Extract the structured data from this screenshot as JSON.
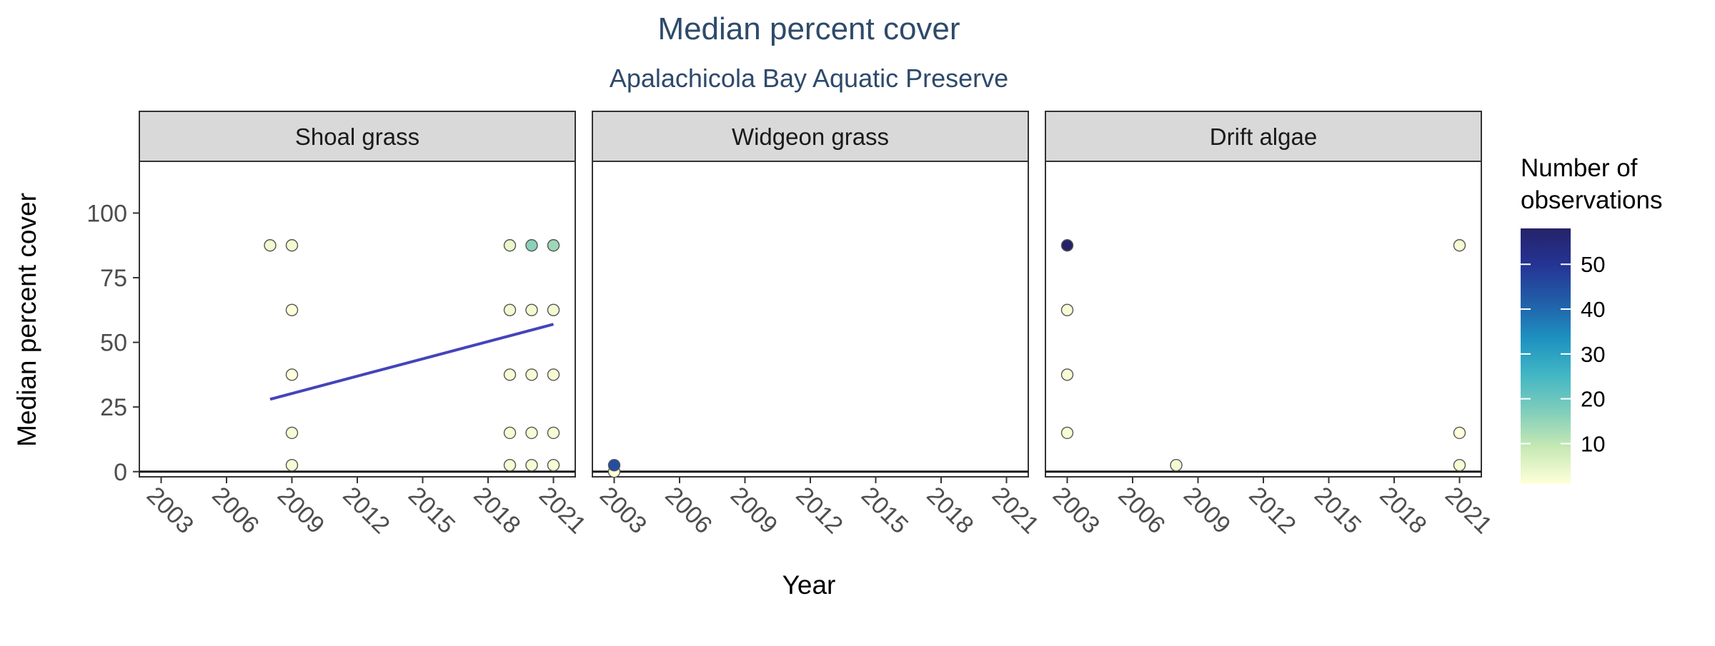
{
  "chart_data": {
    "type": "scatter",
    "title": "Median percent cover",
    "subtitle": "Apalachicola Bay Aquatic Preserve",
    "xlabel": "Year",
    "ylabel": "Median percent cover",
    "xlim": [
      2002,
      2022
    ],
    "ylim": [
      -2,
      120
    ],
    "x_ticks": [
      2003,
      2006,
      2009,
      2012,
      2015,
      2018,
      2021
    ],
    "y_ticks": [
      0,
      25,
      50,
      75,
      100
    ],
    "grid": false,
    "facets": [
      {
        "label": "Shoal grass",
        "points": [
          {
            "year": 2008,
            "cover": 87.5,
            "n": 3
          },
          {
            "year": 2009,
            "cover": 87.5,
            "n": 3
          },
          {
            "year": 2009,
            "cover": 62.5,
            "n": 1
          },
          {
            "year": 2009,
            "cover": 37.5,
            "n": 1
          },
          {
            "year": 2009,
            "cover": 15,
            "n": 2
          },
          {
            "year": 2009,
            "cover": 2.5,
            "n": 2
          },
          {
            "year": 2019,
            "cover": 87.5,
            "n": 4
          },
          {
            "year": 2020,
            "cover": 87.5,
            "n": 16
          },
          {
            "year": 2021,
            "cover": 87.5,
            "n": 14
          },
          {
            "year": 2019,
            "cover": 62.5,
            "n": 3
          },
          {
            "year": 2020,
            "cover": 62.5,
            "n": 3
          },
          {
            "year": 2021,
            "cover": 62.5,
            "n": 3
          },
          {
            "year": 2019,
            "cover": 37.5,
            "n": 2
          },
          {
            "year": 2020,
            "cover": 37.5,
            "n": 2
          },
          {
            "year": 2021,
            "cover": 37.5,
            "n": 2
          },
          {
            "year": 2019,
            "cover": 15,
            "n": 2
          },
          {
            "year": 2020,
            "cover": 15,
            "n": 2
          },
          {
            "year": 2021,
            "cover": 15,
            "n": 2
          },
          {
            "year": 2019,
            "cover": 2.5,
            "n": 2
          },
          {
            "year": 2020,
            "cover": 2.5,
            "n": 2
          },
          {
            "year": 2021,
            "cover": 2.5,
            "n": 2
          }
        ],
        "trend": {
          "x": [
            2008,
            2021
          ],
          "y": [
            28,
            57
          ],
          "color": "#4444bb"
        }
      },
      {
        "label": "Widgeon grass",
        "points": [
          {
            "year": 2003,
            "cover": 0,
            "n": 1
          },
          {
            "year": 2003,
            "cover": 2.5,
            "n": 45
          }
        ]
      },
      {
        "label": "Drift algae",
        "points": [
          {
            "year": 2003,
            "cover": 87.5,
            "n": 58
          },
          {
            "year": 2003,
            "cover": 62.5,
            "n": 2
          },
          {
            "year": 2003,
            "cover": 37.5,
            "n": 2
          },
          {
            "year": 2003,
            "cover": 15,
            "n": 2
          },
          {
            "year": 2008,
            "cover": 2.5,
            "n": 3
          },
          {
            "year": 2021,
            "cover": 87.5,
            "n": 2
          },
          {
            "year": 2021,
            "cover": 15,
            "n": 1
          },
          {
            "year": 2021,
            "cover": 2.5,
            "n": 2
          }
        ]
      }
    ],
    "legend": {
      "title": "Number of observations",
      "title_lines": [
        "Number of",
        "observations"
      ],
      "placement": "right",
      "min": 1,
      "max": 58,
      "ticks": [
        10,
        20,
        30,
        40,
        50
      ],
      "colors": [
        "#ffffd9",
        "#c7e9b4",
        "#7fcdbb",
        "#41b6c4",
        "#1d91c0",
        "#225ea8",
        "#253494",
        "#252268"
      ]
    },
    "colors": {
      "title": "#2e4a6b",
      "strip_fill": "#d9d9d9",
      "axis_text": "#4d4d4d",
      "text": "#000000"
    }
  }
}
